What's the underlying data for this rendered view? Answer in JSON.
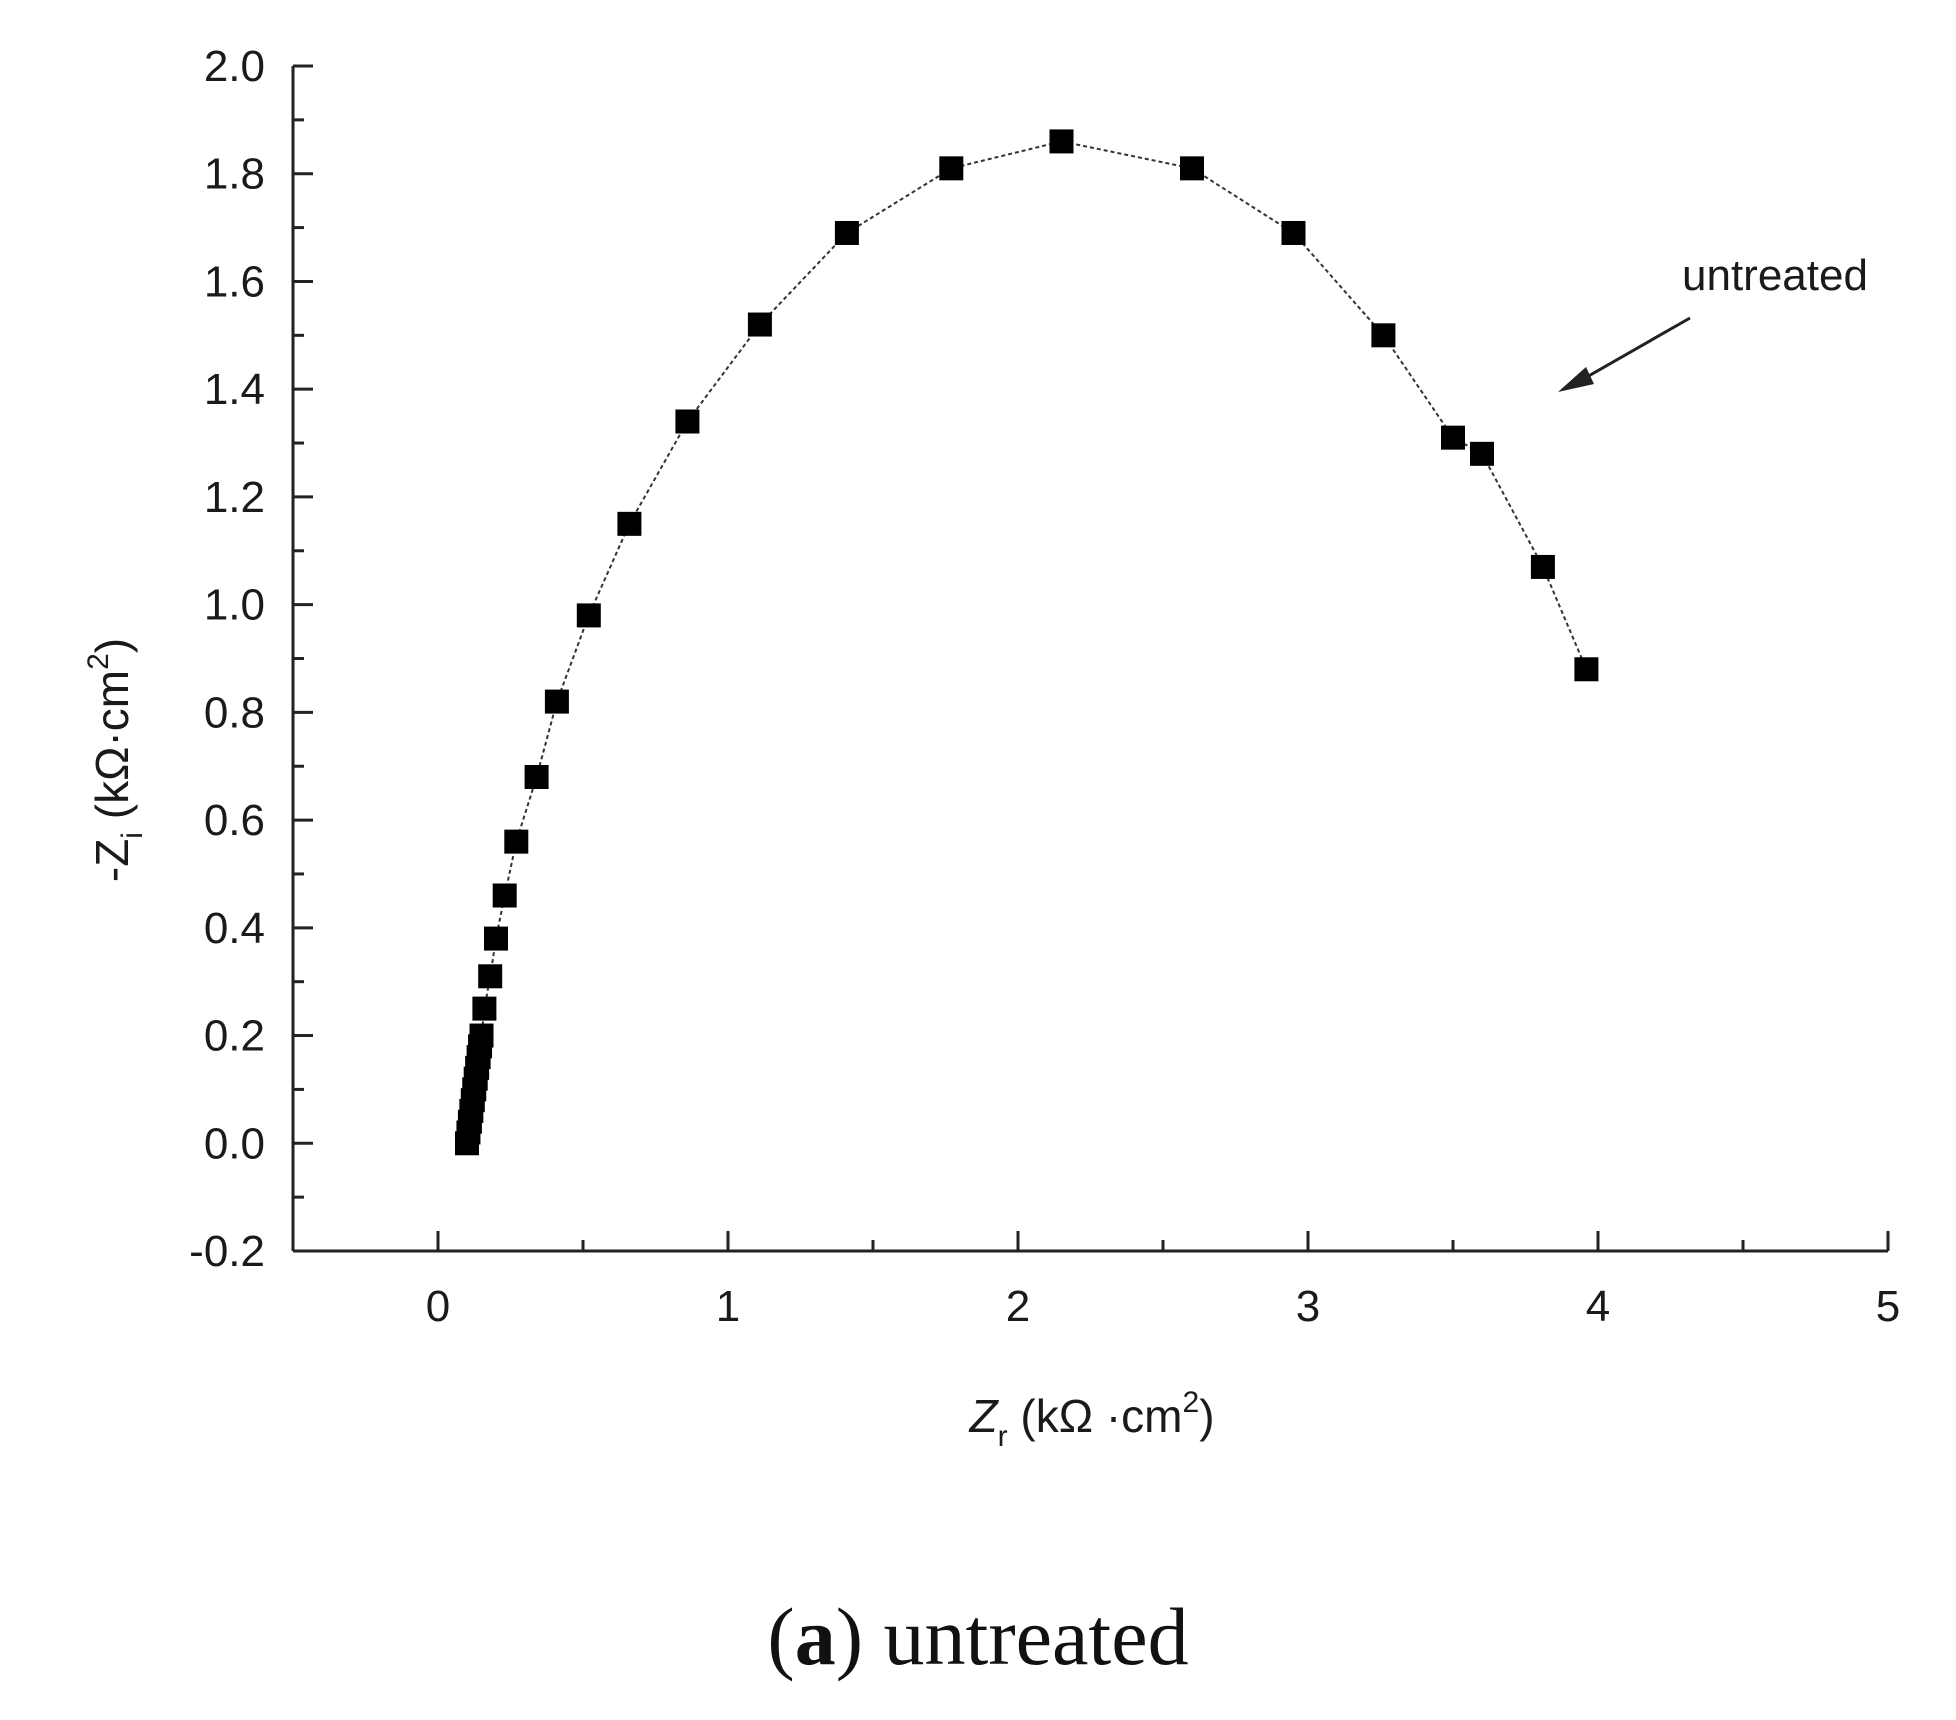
{
  "chart_data": {
    "type": "scatter",
    "xlabel": {
      "prefix": "Z",
      "sub": "r",
      "suffix": " (kΩ ·cm",
      "sup": "2",
      "close": ")"
    },
    "ylabel": {
      "prefix": "-Z",
      "sub": "i",
      "suffix": " (kΩ·cm",
      "sup": "2",
      "close": ")"
    },
    "xlim": [
      -0.5,
      5
    ],
    "ylim": [
      -0.2,
      2.0
    ],
    "x_ticks": [
      "0",
      "1",
      "2",
      "3",
      "4",
      "5"
    ],
    "y_ticks": [
      "-0.2",
      "0.0",
      "0.2",
      "0.4",
      "0.6",
      "0.8",
      "1.0",
      "1.2",
      "1.4",
      "1.6",
      "1.8",
      "2.0"
    ],
    "grid": false,
    "marker": "square",
    "line_style": "dotted",
    "color": "#000000",
    "series": [
      {
        "x": [
          0.1,
          0.105,
          0.11,
          0.115,
          0.12,
          0.125,
          0.13,
          0.135,
          0.14,
          0.145,
          0.15,
          0.16,
          0.18,
          0.2,
          0.23,
          0.27,
          0.34,
          0.41,
          0.52,
          0.66,
          0.86,
          1.11,
          1.41,
          1.77,
          2.15,
          2.6,
          2.95,
          3.26,
          3.5,
          3.6,
          3.81,
          3.96
        ],
        "y": [
          0.0,
          0.02,
          0.04,
          0.06,
          0.08,
          0.1,
          0.12,
          0.14,
          0.16,
          0.18,
          0.2,
          0.25,
          0.31,
          0.38,
          0.46,
          0.56,
          0.68,
          0.82,
          0.98,
          1.15,
          1.34,
          1.52,
          1.69,
          1.81,
          1.86,
          1.81,
          1.69,
          1.5,
          1.31,
          1.28,
          1.07,
          0.88
        ]
      }
    ],
    "annotations": [
      {
        "text": "untreated",
        "arrow": true
      }
    ]
  },
  "caption": {
    "label": "a",
    "text": " untreated"
  }
}
